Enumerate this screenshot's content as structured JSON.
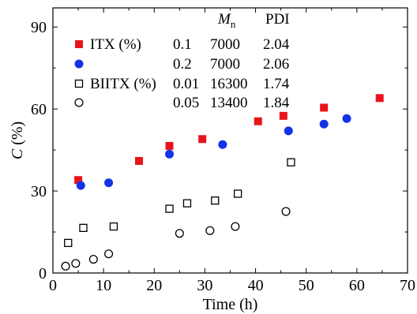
{
  "chart_data": {
    "type": "scatter",
    "xlabel": "Time (h)",
    "ylabel_main": "C",
    "ylabel_unit": " (%)",
    "xlim": [
      0,
      70
    ],
    "ylim": [
      0,
      97
    ],
    "xticks": [
      0,
      10,
      20,
      30,
      40,
      50,
      60,
      70
    ],
    "yticks": [
      0,
      30,
      60,
      90
    ],
    "grid": false,
    "legend_position": "top-left",
    "table_header": {
      "mn_main": "M",
      "mn_sub": "n",
      "pdi": "PDI"
    },
    "series": [
      {
        "name": "ITX (%)",
        "marker": "square-filled",
        "color": "#e8141c",
        "conc": "0.1",
        "mn": "7000",
        "pdi": "2.04",
        "x": [
          5,
          17,
          23,
          29.5,
          40.5,
          45.5,
          53.5,
          64.5
        ],
        "y": [
          34,
          41,
          46.5,
          49,
          55.5,
          57.5,
          60.5,
          64
        ]
      },
      {
        "name": "",
        "marker": "circle-filled",
        "color": "#1432e6",
        "conc": "0.2",
        "mn": "7000",
        "pdi": "2.06",
        "x": [
          5.5,
          11,
          23,
          33.5,
          46.5,
          53.5,
          58
        ],
        "y": [
          32,
          33,
          43.5,
          47,
          52,
          54.5,
          56.5
        ]
      },
      {
        "name": "BIITX (%)",
        "marker": "square-open",
        "color": "#000000",
        "conc": "0.01",
        "mn": "16300",
        "pdi": "1.74",
        "x": [
          3,
          6,
          12,
          23,
          26.5,
          32,
          36.5,
          47
        ],
        "y": [
          11,
          16.5,
          17,
          23.5,
          25.5,
          26.5,
          29,
          40.5
        ]
      },
      {
        "name": "",
        "marker": "circle-open",
        "color": "#000000",
        "conc": "0.05",
        "mn": "13400",
        "pdi": "1.84",
        "x": [
          2.5,
          4.5,
          8,
          11,
          25,
          31,
          36,
          46
        ],
        "y": [
          2.5,
          3.5,
          5,
          7,
          14.5,
          15.5,
          17,
          22.5
        ]
      }
    ]
  }
}
